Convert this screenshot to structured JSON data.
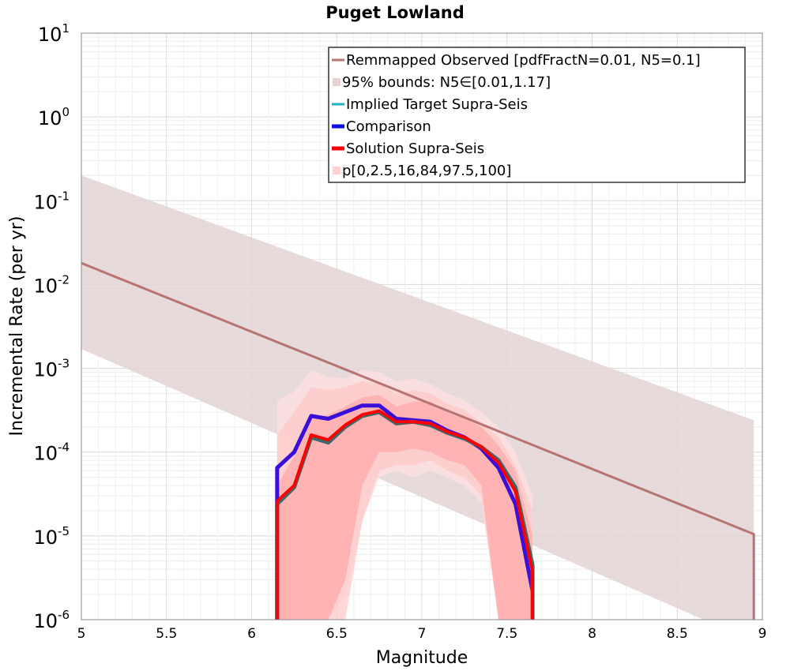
{
  "chart_data": {
    "type": "line",
    "title": "Puget Lowland",
    "xlabel": "Magnitude",
    "ylabel": "Incremental Rate (per yr)",
    "xlim": [
      5,
      9
    ],
    "ylim": [
      1e-06,
      10
    ],
    "yscale": "log",
    "grid": true,
    "legend_position": "top-right",
    "x_ticks": [
      "5",
      "5.5",
      "6",
      "6.5",
      "7",
      "7.5",
      "8",
      "8.5",
      "9"
    ],
    "y_ticks": [
      {
        "base": "10",
        "exp": "1"
      },
      {
        "base": "10",
        "exp": "0"
      },
      {
        "base": "10",
        "exp": "-1"
      },
      {
        "base": "10",
        "exp": "-2"
      },
      {
        "base": "10",
        "exp": "-3"
      },
      {
        "base": "10",
        "exp": "-4"
      },
      {
        "base": "10",
        "exp": "-5"
      },
      {
        "base": "10",
        "exp": "-6"
      }
    ],
    "legend": [
      {
        "label": "Remmapped Observed [pdfFractN=0.01, N5=0.1]",
        "color": "#b87373",
        "kind": "line"
      },
      {
        "label": "95% bounds: N5∈[0.01,1.17]",
        "color": "#e6d2d2",
        "kind": "patch"
      },
      {
        "label": "Implied Target Supra-Seis",
        "color": "#20b0c0",
        "kind": "line"
      },
      {
        "label": "Comparison",
        "color": "#1010e0",
        "kind": "line"
      },
      {
        "label": "Solution Supra-Seis",
        "color": "#ff0000",
        "kind": "line"
      },
      {
        "label": "p[0,2.5,16,84,97.5,100]",
        "color": "#ffd0d0",
        "kind": "patch"
      }
    ],
    "colors": {
      "observed": "#b87373",
      "bounds": "#e3d3d5",
      "implied": "#3a6a6a",
      "comparison": "#3a10d8",
      "solution": "#ff0000",
      "band_outer": "#ffe0e0",
      "band_mid": "#ffc6c6",
      "band_inner": "#ffaaaa"
    },
    "series": [
      {
        "name": "Remmapped Observed [pdfFractN=0.01, N5=0.1]",
        "x": [
          5,
          8.95,
          8.95
        ],
        "y": [
          0.018,
          1.05e-05,
          1e-06
        ]
      },
      {
        "name": "95% bounds: N5∈[0.01,1.17]",
        "x": [
          5,
          8.95
        ],
        "y_upper": [
          0.2,
          0.00024
        ],
        "y_lower": [
          0.0017,
          5.5e-07
        ]
      },
      {
        "name": "Implied Target Supra-Seis",
        "x": [
          6.15,
          6.15,
          6.25,
          6.35,
          6.45,
          6.55,
          6.65,
          6.75,
          6.85,
          6.95,
          7.05,
          7.15,
          7.25,
          7.35,
          7.45,
          7.55,
          7.65,
          7.65
        ],
        "y": [
          1e-06,
          2.4e-05,
          3.8e-05,
          0.00015,
          0.00013,
          0.0002,
          0.00027,
          0.0003,
          0.00022,
          0.00023,
          0.00021,
          0.00017,
          0.000145,
          0.000115,
          8e-05,
          3.8e-05,
          4.5e-06,
          1e-06
        ]
      },
      {
        "name": "Comparison",
        "x": [
          6.15,
          6.15,
          6.25,
          6.35,
          6.45,
          6.55,
          6.65,
          6.75,
          6.85,
          6.95,
          7.05,
          7.15,
          7.25,
          7.35,
          7.45,
          7.55,
          7.65
        ],
        "y": [
          1e-06,
          6.5e-05,
          0.0001,
          0.00027,
          0.00025,
          0.0003,
          0.00036,
          0.00036,
          0.00025,
          0.00024,
          0.00023,
          0.00018,
          0.00015,
          0.00011,
          6.5e-05,
          2.4e-05,
          2.2e-06
        ]
      },
      {
        "name": "Solution Supra-Seis",
        "x": [
          6.15,
          6.15,
          6.25,
          6.35,
          6.45,
          6.55,
          6.65,
          6.75,
          6.85,
          6.95,
          7.05,
          7.15,
          7.25,
          7.35,
          7.45,
          7.55,
          7.65,
          7.65
        ],
        "y": [
          1e-06,
          2.6e-05,
          4e-05,
          0.00016,
          0.00014,
          0.00021,
          0.00028,
          0.00031,
          0.00023,
          0.00023,
          0.00022,
          0.000175,
          0.00015,
          0.000115,
          7.5e-05,
          3.4e-05,
          3.8e-06,
          1e-06
        ]
      },
      {
        "name": "p[0,2.5,16,84,97.5,100]",
        "x": [
          6.15,
          6.25,
          6.35,
          6.45,
          6.55,
          6.65,
          6.75,
          6.85,
          6.95,
          7.05,
          7.15,
          7.25,
          7.35,
          7.45,
          7.55,
          7.65
        ],
        "bands": [
          {
            "y_upper": [
              0.0004,
              0.00053,
              0.00095,
              0.0008,
              0.00075,
              0.00095,
              0.0009,
              0.0007,
              0.00075,
              0.00065,
              0.0005,
              0.00042,
              0.0003,
              0.0002,
              0.0001,
              3e-05
            ],
            "y_lower": [
              1e-06,
              1e-06,
              1e-06,
              1e-06,
              2e-06,
              1.5e-05,
              5e-05,
              6e-05,
              5e-05,
              6e-05,
              5e-05,
              4e-05,
              2.5e-05,
              1e-06,
              1e-06,
              1e-06
            ]
          },
          {
            "y_upper": [
              0.00016,
              0.0003,
              0.0006,
              0.00055,
              0.0006,
              0.0007,
              0.00065,
              0.0005,
              0.00055,
              0.0005,
              0.00038,
              0.00032,
              0.00022,
              0.00015,
              7e-05,
              2e-05
            ],
            "y_lower": [
              1e-06,
              1e-06,
              1e-06,
              1e-06,
              1e-06,
              1.5e-05,
              6e-05,
              7e-05,
              7e-05,
              8e-05,
              6e-05,
              5e-05,
              3e-05,
              1e-06,
              1e-06,
              1e-06
            ]
          },
          {
            "y_upper": [
              4e-05,
              9e-05,
              0.00025,
              0.00028,
              0.00035,
              0.00045,
              0.00048,
              0.00035,
              0.0004,
              0.0004,
              0.0003,
              0.00025,
              0.0002,
              0.00012,
              6e-05,
              1e-05
            ],
            "y_lower": [
              1e-06,
              1e-06,
              1e-06,
              1e-06,
              3e-06,
              4e-05,
              0.0001,
              0.0001,
              0.00011,
              0.0001,
              8e-05,
              7e-05,
              4e-05,
              1e-06,
              1e-06,
              1e-06
            ]
          }
        ]
      }
    ]
  }
}
